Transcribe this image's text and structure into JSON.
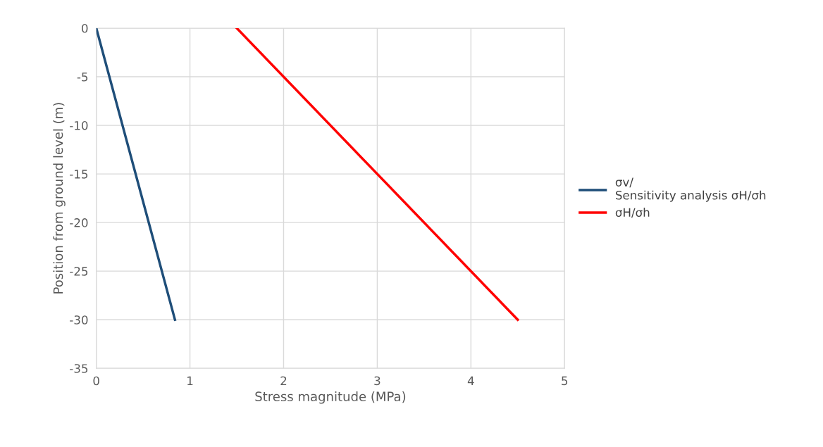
{
  "chart_data": {
    "type": "line",
    "xlabel": "Stress magnitude (MPa)",
    "ylabel": "Position from ground level (m)",
    "series": [
      {
        "name": "σv/\nSensitivity analysis σH/σh",
        "color": "#1f4e79",
        "x": [
          0,
          0.84
        ],
        "values": [
          0,
          -30
        ]
      },
      {
        "name": "σH/σh",
        "color": "#ff0000",
        "x": [
          1.5,
          4.5
        ],
        "values": [
          0,
          -30
        ]
      }
    ],
    "xlim": [
      0,
      5
    ],
    "xticks": [
      0,
      1,
      2,
      3,
      4,
      5
    ],
    "ylim": [
      -35,
      0
    ],
    "yticks": [
      -35,
      -30,
      -25,
      -20,
      -15,
      -10,
      -5,
      0
    ],
    "grid": true,
    "legend": "right",
    "marker": "none",
    "line_style": "solid"
  }
}
